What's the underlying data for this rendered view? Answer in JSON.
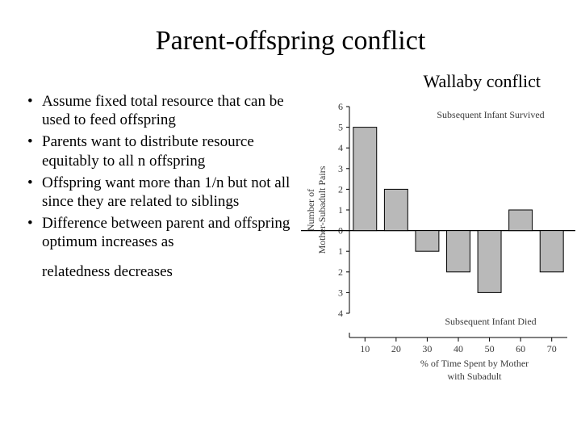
{
  "title": "Parent-offspring conflict",
  "subtitle": "Wallaby conflict",
  "bullets": [
    "Assume fixed total resource that can be used to feed offspring",
    "Parents want to distribute resource equitably to all n offspring",
    "Offspring want more than 1/n but not all since they are related to siblings",
    "Difference between parent and offspring optimum increases as"
  ],
  "tail": "relatedness decreases",
  "chart": {
    "type": "bar",
    "categories": [
      "10",
      "20",
      "30",
      "40",
      "50",
      "60",
      "70"
    ],
    "values_up": [
      5,
      2,
      0,
      0,
      0,
      1,
      0
    ],
    "values_down": [
      0,
      0,
      1,
      2,
      3,
      0,
      2
    ],
    "y_up_ticks": [
      0,
      1,
      2,
      3,
      4,
      5,
      6
    ],
    "y_down_ticks": [
      1,
      2,
      3,
      4
    ],
    "bar_fill": "#b9b9b9",
    "bar_stroke": "#000000",
    "axis_color": "#000000",
    "tick_color": "#000000",
    "grid_color": "#000000",
    "background": "#ffffff",
    "label_top": "Subsequent Infant Survived",
    "label_bottom": "Subsequent Infant Died",
    "y_label_line1": "Number of",
    "y_label_line2": "Mother-Subadult Pairs",
    "x_label_line1": "% of Time Spent by Mother",
    "x_label_line2": "with Subadult",
    "tick_fontsize": 12,
    "label_fontsize": 12,
    "bar_width_ratio": 0.75
  }
}
